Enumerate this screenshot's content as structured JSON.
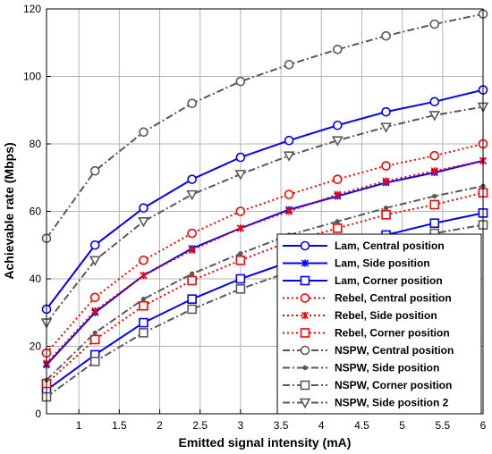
{
  "chart_data": {
    "type": "line",
    "xlabel": "Emitted signal intensity (mA)",
    "ylabel": "Achievable rate (Mbps)",
    "xlim": [
      0.6,
      6
    ],
    "ylim": [
      0,
      120
    ],
    "xticks": [
      1,
      1.5,
      2,
      2.5,
      3,
      3.5,
      4,
      4.5,
      5,
      5.5,
      6
    ],
    "yticks": [
      0,
      20,
      40,
      60,
      80,
      100,
      120
    ],
    "grid": true,
    "legend_position": "bottom-right",
    "x": [
      0.6,
      1.2,
      1.8,
      2.4,
      3.0,
      3.6,
      4.2,
      4.8,
      5.4,
      6.0
    ],
    "series": [
      {
        "name": "Lam, Central position",
        "color": "#0000ff",
        "dash": "solid",
        "marker": "circle",
        "values": [
          31,
          50,
          61,
          69.5,
          76,
          81,
          85.5,
          89.5,
          92.5,
          96
        ]
      },
      {
        "name": "Lam, Side position",
        "color": "#0000ff",
        "dash": "solid",
        "marker": "star",
        "values": [
          14.5,
          30,
          41,
          49,
          55,
          60.5,
          64.5,
          68.5,
          71.5,
          75
        ]
      },
      {
        "name": "Lam, Corner position",
        "color": "#0000ff",
        "dash": "solid",
        "marker": "square",
        "values": [
          7,
          17.5,
          27,
          34,
          40,
          45,
          49.5,
          53,
          56.5,
          59.5
        ]
      },
      {
        "name": "Rebel, Central position",
        "color": "#ff0000",
        "dash": "dotted",
        "marker": "circle",
        "values": [
          18,
          34.5,
          45.5,
          53.5,
          60,
          65,
          69.5,
          73.5,
          76.5,
          80
        ]
      },
      {
        "name": "Rebel, Side position",
        "color": "#ff0000",
        "dash": "dotted",
        "marker": "star",
        "values": [
          15,
          30.5,
          41,
          48.5,
          55,
          60,
          65,
          69,
          72,
          75
        ]
      },
      {
        "name": "Rebel, Corner position",
        "color": "#ff0000",
        "dash": "dotted",
        "marker": "square",
        "values": [
          9,
          22,
          32,
          39.5,
          45.5,
          51,
          55,
          59,
          62,
          65.5
        ]
      },
      {
        "name": "NSPW, Central position",
        "color": "#595959",
        "dash": "dashdot",
        "marker": "circle",
        "values": [
          52,
          72,
          83.5,
          92,
          98.5,
          103.5,
          108,
          112,
          115.5,
          118.5
        ]
      },
      {
        "name": "NSPW, Side position",
        "color": "#595959",
        "dash": "dashdot",
        "marker": "dot",
        "values": [
          10,
          24,
          34,
          41.5,
          47.5,
          53,
          57,
          61,
          64.5,
          67.5
        ]
      },
      {
        "name": "NSPW, Corner position",
        "color": "#595959",
        "dash": "dashdot",
        "marker": "square",
        "values": [
          5,
          15.5,
          24,
          31,
          37,
          42,
          46.5,
          50.5,
          53.5,
          56
        ]
      },
      {
        "name": "NSPW, Side position 2",
        "color": "#595959",
        "dash": "dashdot",
        "marker": "triangle-down",
        "values": [
          27,
          45.5,
          57,
          65,
          71,
          76.5,
          81,
          85,
          88.5,
          91
        ]
      }
    ]
  }
}
